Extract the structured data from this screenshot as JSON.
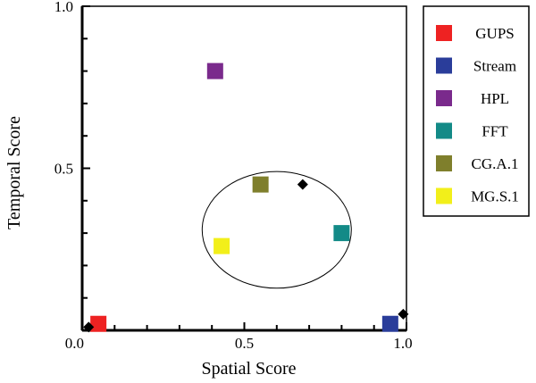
{
  "chart_data": {
    "type": "scatter",
    "xlabel": "Spatial Score",
    "ylabel": "Temporal Score",
    "xlim": [
      0,
      1
    ],
    "ylim": [
      0,
      1
    ],
    "x_ticks": [
      {
        "value": 0.0,
        "label": "0.0"
      },
      {
        "value": 0.5,
        "label": "0.5"
      },
      {
        "value": 1.0,
        "label": "1.0"
      }
    ],
    "y_ticks": [
      {
        "value": 0.5,
        "label": "0.5"
      },
      {
        "value": 1.0,
        "label": "1.0"
      }
    ],
    "grid": false,
    "legend_position": "right",
    "series": [
      {
        "name": "GUPS",
        "color": "#ee2222",
        "marker": "square",
        "points": [
          [
            0.05,
            0.02
          ]
        ]
      },
      {
        "name": "Stream",
        "color": "#2a3d9a",
        "marker": "square",
        "points": [
          [
            0.95,
            0.02
          ]
        ]
      },
      {
        "name": "HPL",
        "color": "#7a2a8c",
        "marker": "square",
        "points": [
          [
            0.41,
            0.8
          ]
        ]
      },
      {
        "name": "FFT",
        "color": "#138a87",
        "marker": "square",
        "points": [
          [
            0.8,
            0.3
          ]
        ]
      },
      {
        "name": "CG.A.1",
        "color": "#7f7f2c",
        "marker": "square",
        "points": [
          [
            0.55,
            0.45
          ]
        ]
      },
      {
        "name": "MG.S.1",
        "color": "#f2ef1a",
        "marker": "square",
        "points": [
          [
            0.43,
            0.26
          ]
        ]
      }
    ],
    "extra_points": {
      "color": "#000000",
      "marker": "diamond",
      "points": [
        [
          0.02,
          0.01
        ],
        [
          0.68,
          0.45
        ],
        [
          0.99,
          0.05
        ]
      ]
    },
    "annotation_ellipse": {
      "center": [
        0.6,
        0.31
      ],
      "radius_x": 0.23,
      "radius_y": 0.18
    }
  }
}
